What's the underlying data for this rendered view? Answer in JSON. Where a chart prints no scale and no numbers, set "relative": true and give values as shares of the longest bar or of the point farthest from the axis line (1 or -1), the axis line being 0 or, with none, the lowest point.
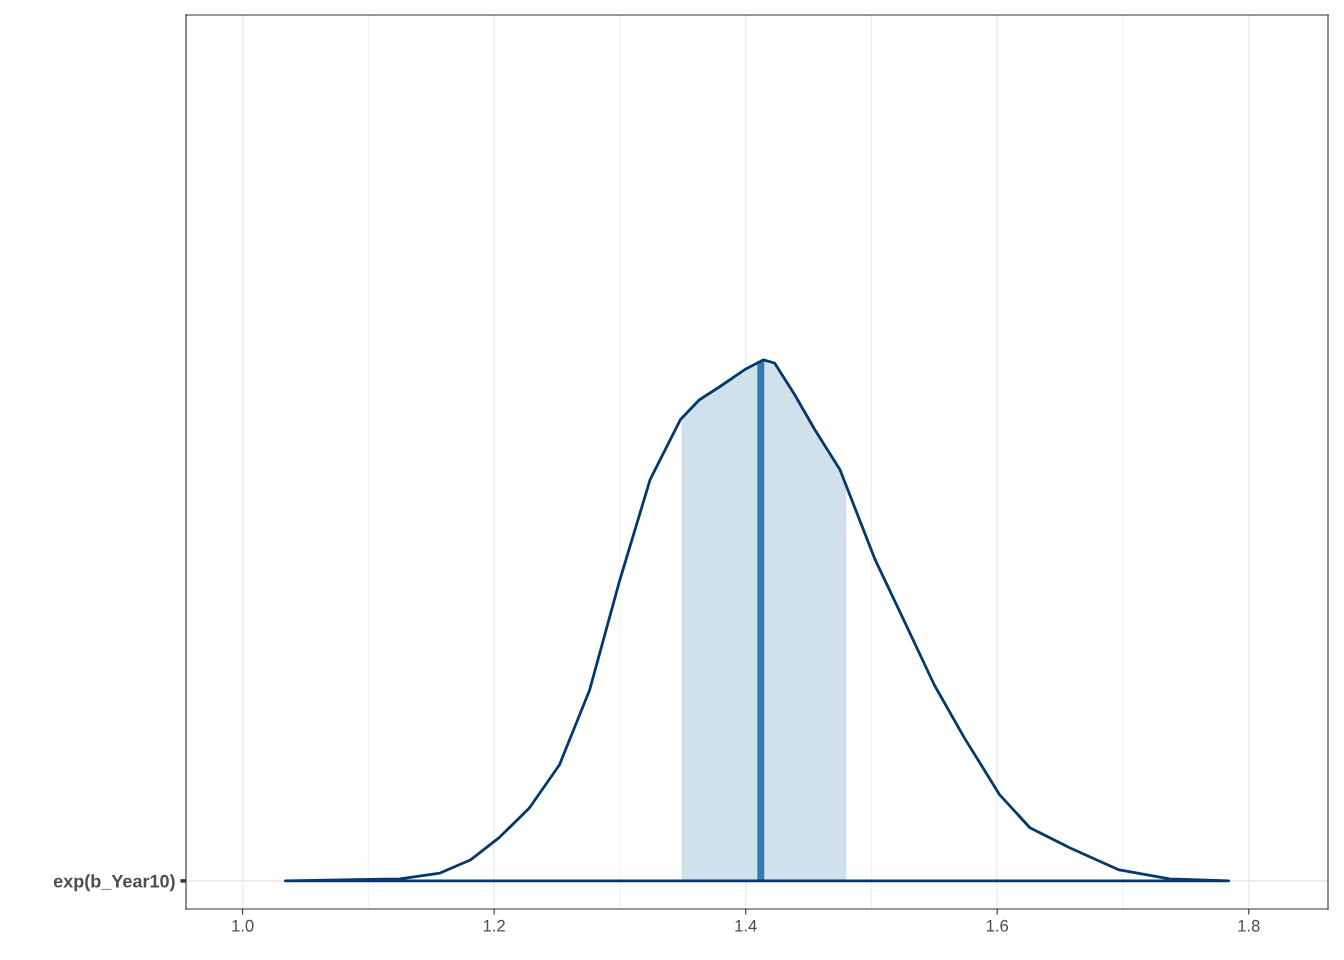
{
  "chart_data": {
    "type": "area",
    "relative": true,
    "x": [
      1.034,
      1.125,
      1.157,
      1.181,
      1.204,
      1.228,
      1.252,
      1.276,
      1.3,
      1.324,
      1.348,
      1.363,
      1.379,
      1.399,
      1.414,
      1.423,
      1.439,
      1.455,
      1.475,
      1.503,
      1.526,
      1.55,
      1.574,
      1.602,
      1.626,
      1.658,
      1.697,
      1.737,
      1.784
    ],
    "series": [
      {
        "color": "#03396c",
        "values": [
          0,
          0.004,
          0.015,
          0.04,
          0.083,
          0.14,
          0.223,
          0.367,
          0.578,
          0.77,
          0.885,
          0.923,
          0.948,
          0.981,
          1.0,
          0.994,
          0.933,
          0.866,
          0.789,
          0.616,
          0.499,
          0.376,
          0.274,
          0.165,
          0.102,
          0.063,
          0.021,
          0.004,
          0
        ]
      }
    ],
    "xlim": [
      0.955,
      1.863
    ],
    "xticks": [
      {
        "value": 1.0,
        "label": "1.0"
      },
      {
        "value": 1.2,
        "label": "1.2"
      },
      {
        "value": 1.4,
        "label": "1.4"
      },
      {
        "value": 1.6,
        "label": "1.6"
      },
      {
        "value": 1.8,
        "label": "1.8"
      }
    ],
    "bands": [
      {
        "axis": "x",
        "from": 1.349,
        "to": 1.48,
        "color": "#c5dae7"
      }
    ],
    "ref_lines": [
      {
        "axis": "x",
        "value": 1.412,
        "color": "#005b96"
      }
    ],
    "annotations": [
      "exp(b_Year10)"
    ],
    "grid": true
  }
}
